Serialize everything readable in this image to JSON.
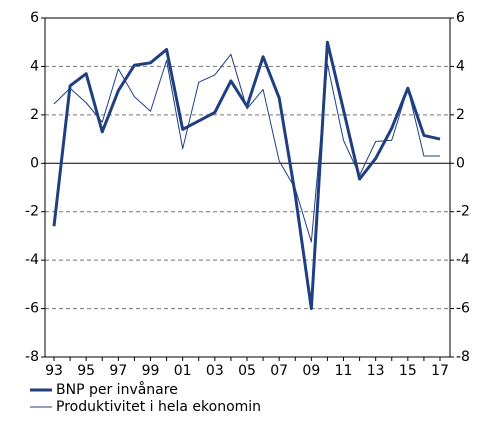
{
  "chart_data": {
    "type": "line",
    "categories": [
      "93",
      null,
      "95",
      null,
      "97",
      null,
      "99",
      null,
      "01",
      null,
      "03",
      null,
      "05",
      null,
      "07",
      null,
      "09",
      null,
      "11",
      null,
      "13",
      null,
      "15",
      null,
      "17"
    ],
    "series": [
      {
        "name": "BNP per invånare",
        "color": "#1f3f80",
        "width": 3,
        "values": [
          -2.6,
          3.2,
          3.7,
          1.3,
          3.0,
          4.05,
          4.15,
          4.7,
          1.4,
          1.75,
          2.1,
          3.4,
          2.35,
          4.4,
          2.7,
          -1.3,
          -6.0,
          5.0,
          2.2,
          -0.65,
          0.2,
          1.45,
          3.1,
          1.15,
          1.0
        ]
      },
      {
        "name": "Produktivitet i hela ekonomin",
        "color": "#1f3f80",
        "width": 1,
        "values": [
          2.45,
          3.1,
          2.5,
          1.7,
          3.9,
          2.75,
          2.15,
          4.25,
          0.6,
          3.35,
          3.65,
          4.5,
          2.25,
          3.05,
          0.1,
          -1.05,
          -3.25,
          4.1,
          0.95,
          -0.5,
          0.9,
          0.95,
          3.1,
          0.3,
          0.3
        ]
      }
    ],
    "ylim": [
      -8,
      6
    ],
    "yticks": [
      -8,
      -6,
      -4,
      -2,
      0,
      2,
      4,
      6
    ],
    "y2lim": [
      -8,
      6
    ],
    "y2ticks": [
      -8,
      -6,
      -4,
      -2,
      0,
      2,
      4,
      6
    ],
    "grid": true,
    "legend": "bottom"
  }
}
